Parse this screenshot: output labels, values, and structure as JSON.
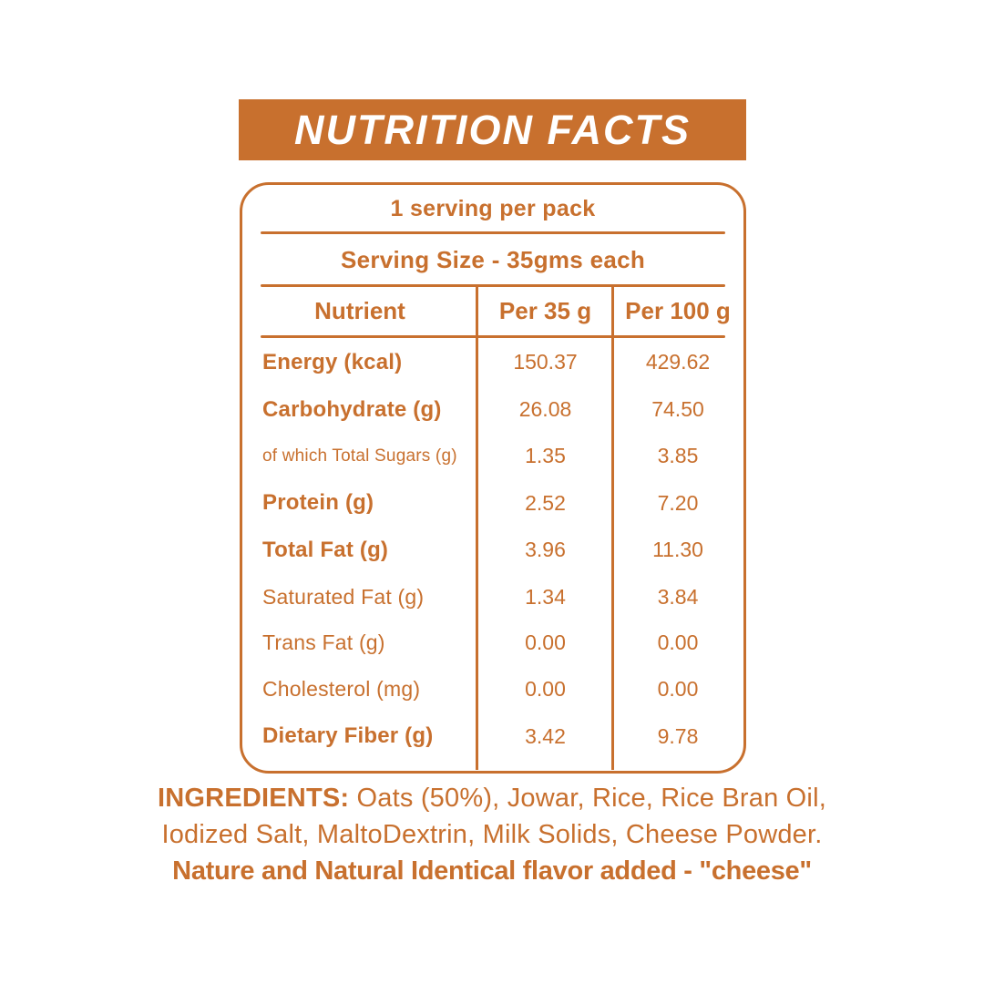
{
  "colors": {
    "accent": "#C8702E",
    "banner_text": "#FFFFFF",
    "background": "#FFFFFF"
  },
  "banner": {
    "title": "NUTRITION FACTS"
  },
  "panel": {
    "serving_per_pack": "1 serving per pack",
    "serving_size": "Serving Size - 35gms each",
    "columns": [
      "Nutrient",
      "Per 35 g",
      "Per 100 g"
    ],
    "rows": [
      {
        "label": "Energy (kcal)",
        "per35": "150.37",
        "per100": "429.62"
      },
      {
        "label": "Carbohydrate (g)",
        "per35": "26.08",
        "per100": "74.50"
      },
      {
        "label": "of which Total Sugars (g)",
        "per35": "1.35",
        "per100": "3.85"
      },
      {
        "label": "Protein (g)",
        "per35": "2.52",
        "per100": "7.20"
      },
      {
        "label": "Total Fat (g)",
        "per35": "3.96",
        "per100": "11.30"
      },
      {
        "label": "Saturated Fat (g)",
        "per35": "1.34",
        "per100": "3.84"
      },
      {
        "label": "Trans Fat (g)",
        "per35": "0.00",
        "per100": "0.00"
      },
      {
        "label": "Cholesterol (mg)",
        "per35": "0.00",
        "per100": "0.00"
      },
      {
        "label": "Dietary Fiber (g)",
        "per35": "3.42",
        "per100": "9.78"
      }
    ]
  },
  "ingredients": {
    "heading": "INGREDIENTS:",
    "line1_rest": " Oats (50%), Jowar, Rice, Rice Bran Oil,",
    "line2": "Iodized Salt, MaltoDextrin, Milk Solids, Cheese Powder.",
    "line3": "Nature and Natural Identical flavor added - \"cheese\""
  },
  "chart_data": {
    "type": "table",
    "title": "Nutrition Facts",
    "columns": [
      "Nutrient",
      "Per 35 g",
      "Per 100 g"
    ],
    "rows": [
      [
        "Energy (kcal)",
        150.37,
        429.62
      ],
      [
        "Carbohydrate (g)",
        26.08,
        74.5
      ],
      [
        "of which Total Sugars (g)",
        1.35,
        3.85
      ],
      [
        "Protein (g)",
        2.52,
        7.2
      ],
      [
        "Total Fat (g)",
        3.96,
        11.3
      ],
      [
        "Saturated Fat (g)",
        1.34,
        3.84
      ],
      [
        "Trans Fat (g)",
        0.0,
        0.0
      ],
      [
        "Cholesterol (mg)",
        0.0,
        0.0
      ],
      [
        "Dietary Fiber (g)",
        3.42,
        9.78
      ]
    ]
  }
}
